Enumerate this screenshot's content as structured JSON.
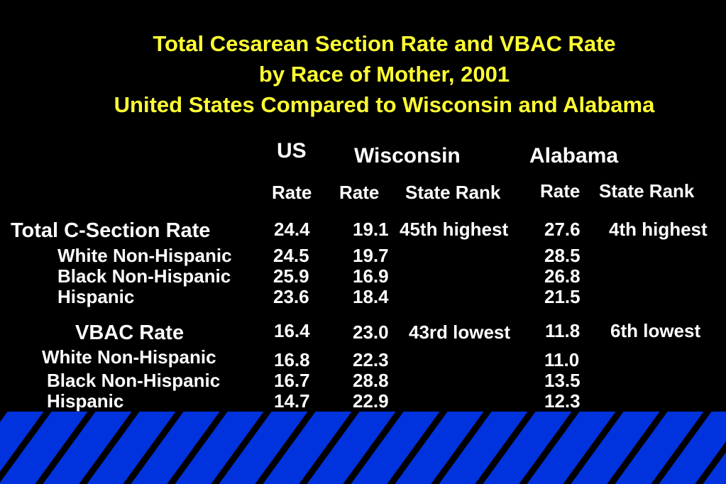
{
  "title": {
    "line1": "Total Cesarean Section Rate and VBAC Rate",
    "line2": "by Race of Mother, 2001",
    "line3": "United States Compared to Wisconsin and Alabama"
  },
  "columns": {
    "us": "US",
    "wisconsin": "Wisconsin",
    "alabama": "Alabama",
    "rate": "Rate",
    "state_rank": "State Rank"
  },
  "sections": [
    {
      "label": "Total C-Section Rate",
      "us": "24.4",
      "wi": "19.1",
      "wi_rank": "45th highest",
      "al": "27.6",
      "al_rank": "4th highest",
      "rows": [
        {
          "label": "White Non-Hispanic",
          "us": "24.5",
          "wi": "19.7",
          "al": "28.5"
        },
        {
          "label": "Black Non-Hispanic",
          "us": "25.9",
          "wi": "16.9",
          "al": "26.8"
        },
        {
          "label": "Hispanic",
          "us": "23.6",
          "wi": "18.4",
          "al": "21.5"
        }
      ]
    },
    {
      "label": "VBAC Rate",
      "us": "16.4",
      "wi": "23.0",
      "wi_rank": "43rd lowest",
      "al": "11.8",
      "al_rank": "6th lowest",
      "rows": [
        {
          "label": "White Non-Hispanic",
          "us": "16.8",
          "wi": "22.3",
          "al": "11.0"
        },
        {
          "label": "Black Non-Hispanic",
          "us": "16.7",
          "wi": "28.8",
          "al": "13.5"
        },
        {
          "label": "Hispanic",
          "us": "14.7",
          "wi": "22.9",
          "al": "12.3"
        }
      ]
    }
  ],
  "colors": {
    "background": "#000000",
    "title": "#ffff33",
    "text": "#ffffff",
    "stripe_band": "#0033dd",
    "stripe_line": "#000000"
  }
}
